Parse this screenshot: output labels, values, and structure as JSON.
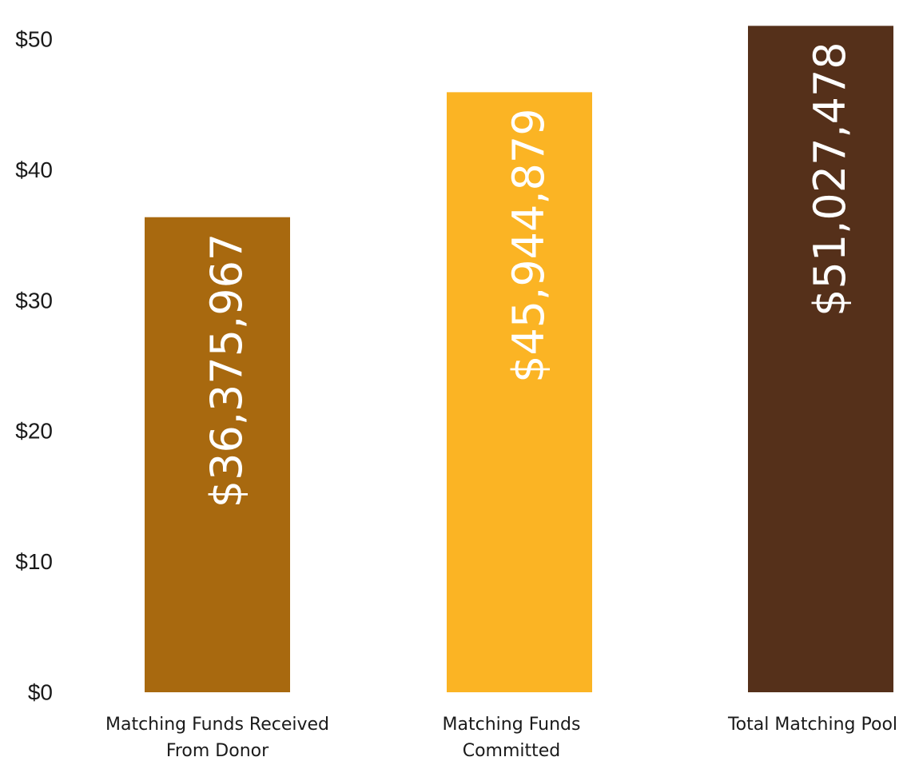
{
  "chart_data": {
    "type": "bar",
    "title": "",
    "xlabel": "",
    "ylabel": "",
    "ylim": [
      0,
      52.7
    ],
    "yticks": [
      {
        "value": 0,
        "label": "$0"
      },
      {
        "value": 10,
        "label": "$10"
      },
      {
        "value": 20,
        "label": "$20"
      },
      {
        "value": 30,
        "label": "$30"
      },
      {
        "value": 40,
        "label": "$40"
      },
      {
        "value": 50,
        "label": "$50"
      }
    ],
    "grid": false,
    "categories": [
      [
        "Matching Funds Received",
        "From Donor"
      ],
      [
        "Matching Funds",
        "Committed"
      ],
      [
        "Total Matching Pool"
      ]
    ],
    "values": [
      36.375967,
      45.944879,
      51.027478
    ],
    "value_labels": [
      "$36,375,967",
      "$45,944,879",
      "$51,027,478"
    ],
    "colors": [
      "#A8690F",
      "#FBB424",
      "#55301A"
    ]
  }
}
